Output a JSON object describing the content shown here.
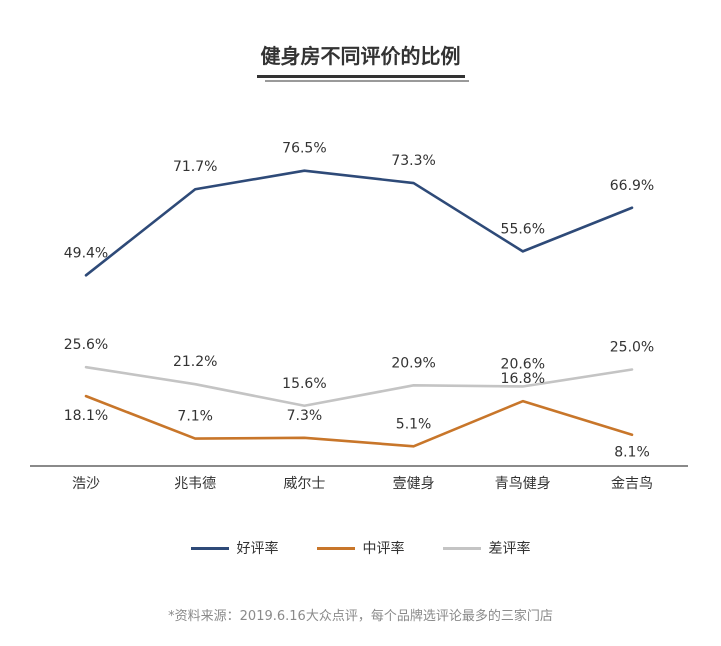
{
  "chart_data": {
    "type": "line",
    "title": "健身房不同评价的比例",
    "categories": [
      "浩沙",
      "兆韦德",
      "威尔士",
      "壹健身",
      "青鸟健身",
      "金吉鸟"
    ],
    "series": [
      {
        "name": "好评率",
        "color": "#2e4a78",
        "values": [
          49.4,
          71.7,
          76.5,
          73.3,
          55.6,
          66.9
        ],
        "labels": [
          "49.4%",
          "71.7%",
          "76.5%",
          "73.3%",
          "55.6%",
          "66.9%"
        ]
      },
      {
        "name": "中评率",
        "color": "#c8762a",
        "values": [
          18.1,
          7.1,
          7.3,
          5.1,
          16.8,
          8.1
        ],
        "labels": [
          "18.1%",
          "7.1%",
          "7.3%",
          "5.1%",
          "16.8%",
          "8.1%"
        ]
      },
      {
        "name": "差评率",
        "color": "#c4c4c4",
        "values": [
          25.6,
          21.2,
          15.6,
          20.9,
          20.6,
          25.0
        ],
        "labels": [
          "25.6%",
          "21.2%",
          "15.6%",
          "20.9%",
          "20.6%",
          "25.0%"
        ]
      }
    ],
    "xlabel": "",
    "ylabel": "",
    "ylim": [
      0,
      100
    ],
    "grid": false,
    "legend_position": "bottom"
  },
  "source_note": "*资料来源：2019.6.16大众点评，每个品牌选评论最多的三家门店"
}
